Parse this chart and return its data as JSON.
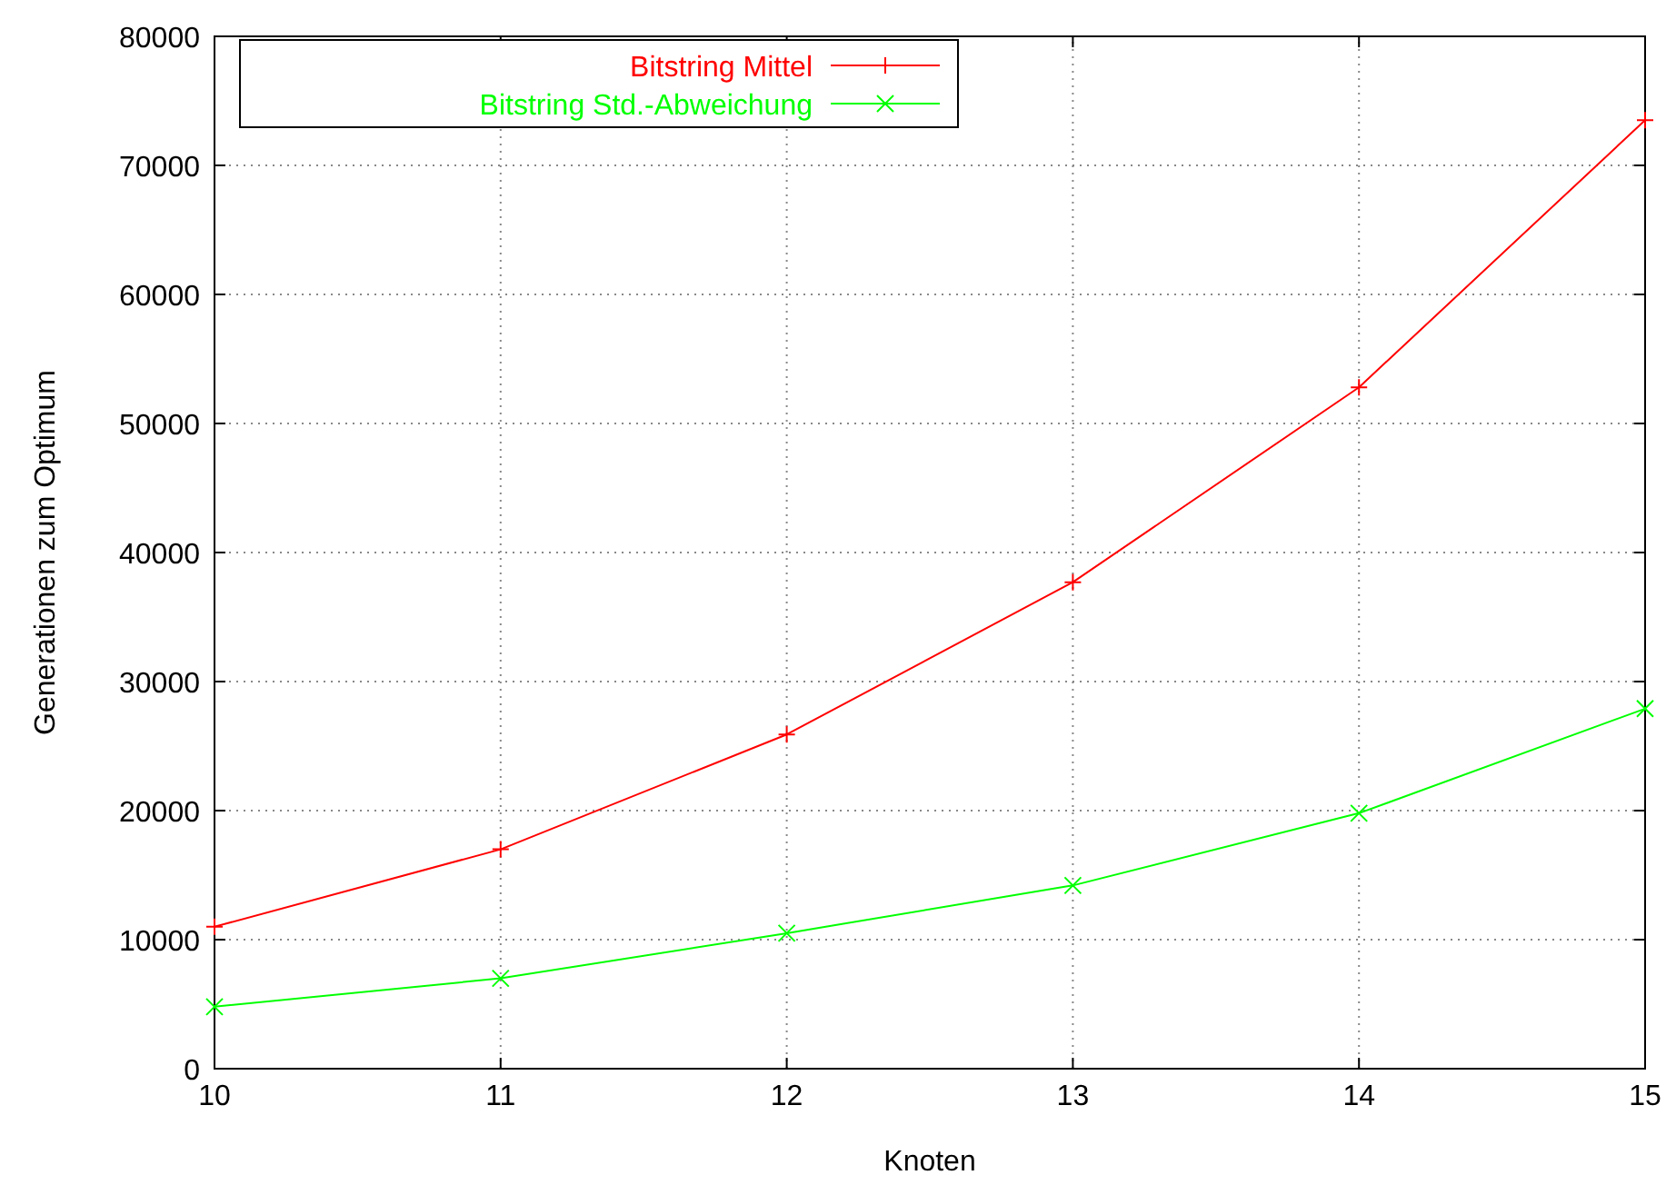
{
  "chart_data": {
    "type": "line",
    "xlabel": "Knoten",
    "ylabel": "Generationen zum Optimum",
    "x": [
      10,
      11,
      12,
      13,
      14,
      15
    ],
    "xlim": [
      10,
      15
    ],
    "xticks": [
      10,
      11,
      12,
      13,
      14,
      15
    ],
    "ylim": [
      0,
      80000
    ],
    "yticks": [
      0,
      10000,
      20000,
      30000,
      40000,
      50000,
      60000,
      70000,
      80000
    ],
    "grid": true,
    "legend": "top left",
    "line_style": "solid",
    "series": [
      {
        "name": "Bitstring Mittel",
        "color": "#ff0000",
        "marker": "cross",
        "values": [
          11000,
          17000,
          25900,
          37700,
          52800,
          73500
        ]
      },
      {
        "name": "Bitstring Std.-Abweichung",
        "color": "#00ff00",
        "marker": "x",
        "values": [
          4800,
          7000,
          10500,
          14200,
          19800,
          27900
        ]
      }
    ]
  }
}
